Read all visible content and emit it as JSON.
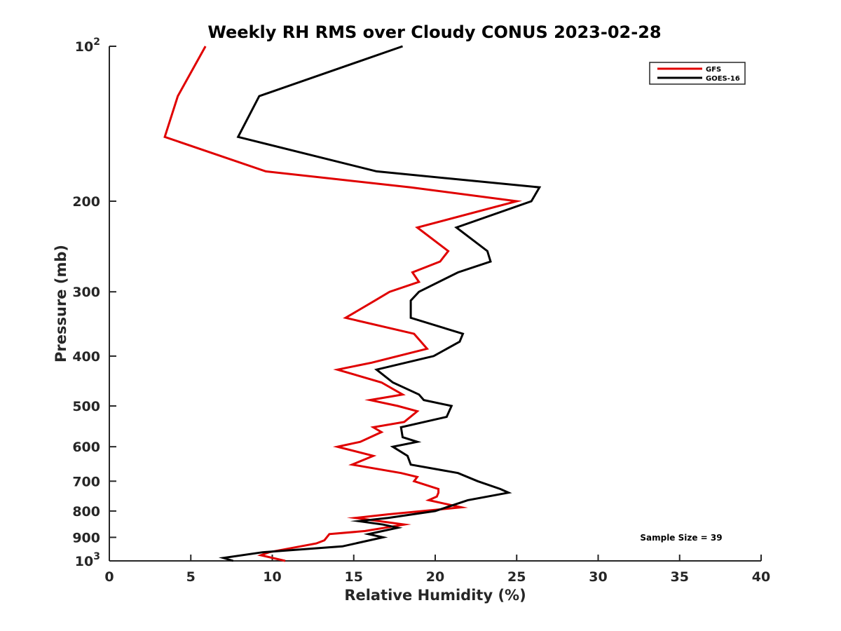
{
  "chart_data": {
    "type": "line",
    "title": "Weekly RH RMS over Cloudy CONUS 2023-02-28",
    "xlabel": "Relative Humidity (%)",
    "ylabel": "Pressure (mb)",
    "xlim": [
      0,
      40
    ],
    "ylim": [
      100,
      1000
    ],
    "y_scale": "log",
    "y_reversed": true,
    "grid": false,
    "legend_position": "top-right",
    "x_ticks": [
      0,
      5,
      10,
      15,
      20,
      25,
      30,
      35,
      40
    ],
    "y_ticks": [
      {
        "value": 100,
        "base": "10",
        "exp": "2"
      },
      {
        "value": 200,
        "label": "200"
      },
      {
        "value": 300,
        "label": "300"
      },
      {
        "value": 400,
        "label": "400"
      },
      {
        "value": 500,
        "label": "500"
      },
      {
        "value": 600,
        "label": "600"
      },
      {
        "value": 700,
        "label": "700"
      },
      {
        "value": 800,
        "label": "800"
      },
      {
        "value": 900,
        "label": "900"
      },
      {
        "value": 1000,
        "base": "10",
        "exp": "3"
      }
    ],
    "annotation": "Sample Size = 39",
    "series": [
      {
        "name": "GFS",
        "color": "#e00000",
        "points": [
          [
            5.9,
            100
          ],
          [
            4.2,
            125
          ],
          [
            3.4,
            150
          ],
          [
            9.6,
            175
          ],
          [
            18.5,
            188
          ],
          [
            25.0,
            200
          ],
          [
            18.9,
            225
          ],
          [
            20.8,
            250
          ],
          [
            20.3,
            262
          ],
          [
            18.6,
            275
          ],
          [
            19.0,
            287
          ],
          [
            17.2,
            300
          ],
          [
            16.3,
            312
          ],
          [
            14.5,
            337
          ],
          [
            18.7,
            362
          ],
          [
            19.5,
            387
          ],
          [
            16.1,
            412
          ],
          [
            14.0,
            425
          ],
          [
            16.7,
            450
          ],
          [
            18.0,
            475
          ],
          [
            16.0,
            487
          ],
          [
            17.7,
            500
          ],
          [
            18.9,
            512
          ],
          [
            18.1,
            537
          ],
          [
            16.2,
            550
          ],
          [
            16.7,
            562
          ],
          [
            15.4,
            587
          ],
          [
            14.0,
            600
          ],
          [
            16.2,
            625
          ],
          [
            14.9,
            650
          ],
          [
            17.9,
            675
          ],
          [
            18.9,
            687
          ],
          [
            18.7,
            700
          ],
          [
            20.2,
            725
          ],
          [
            20.2,
            737
          ],
          [
            20.1,
            750
          ],
          [
            19.6,
            762
          ],
          [
            21.6,
            787
          ],
          [
            17.1,
            812
          ],
          [
            15.1,
            825
          ],
          [
            18.1,
            850
          ],
          [
            15.7,
            875
          ],
          [
            13.5,
            887
          ],
          [
            13.2,
            912
          ],
          [
            12.7,
            925
          ],
          [
            9.8,
            962
          ],
          [
            9.3,
            975
          ],
          [
            10.8,
            1000
          ]
        ]
      },
      {
        "name": "GOES-16",
        "color": "#000000",
        "points": [
          [
            18.0,
            100
          ],
          [
            9.2,
            125
          ],
          [
            7.9,
            150
          ],
          [
            16.4,
            175
          ],
          [
            26.4,
            188
          ],
          [
            25.9,
            200
          ],
          [
            21.3,
            225
          ],
          [
            23.2,
            250
          ],
          [
            23.4,
            262
          ],
          [
            21.4,
            275
          ],
          [
            19.0,
            300
          ],
          [
            18.5,
            312
          ],
          [
            18.5,
            337
          ],
          [
            21.7,
            362
          ],
          [
            21.5,
            375
          ],
          [
            19.9,
            400
          ],
          [
            16.4,
            425
          ],
          [
            17.4,
            450
          ],
          [
            19.0,
            475
          ],
          [
            19.3,
            487
          ],
          [
            21.0,
            500
          ],
          [
            20.7,
            525
          ],
          [
            17.9,
            550
          ],
          [
            18.0,
            575
          ],
          [
            18.9,
            587
          ],
          [
            17.4,
            600
          ],
          [
            18.3,
            625
          ],
          [
            18.5,
            650
          ],
          [
            21.4,
            675
          ],
          [
            22.6,
            700
          ],
          [
            24.0,
            725
          ],
          [
            24.5,
            737
          ],
          [
            22.0,
            762
          ],
          [
            20.0,
            800
          ],
          [
            17.1,
            825
          ],
          [
            15.3,
            837
          ],
          [
            16.8,
            850
          ],
          [
            17.7,
            862
          ],
          [
            15.9,
            887
          ],
          [
            16.8,
            900
          ],
          [
            14.3,
            937
          ],
          [
            9.4,
            962
          ],
          [
            7.0,
            987
          ],
          [
            7.6,
            1000
          ]
        ]
      }
    ]
  }
}
